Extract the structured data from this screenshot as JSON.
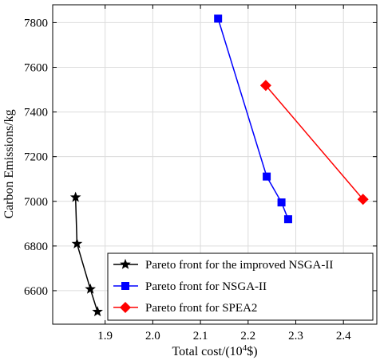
{
  "chart_data": {
    "type": "line",
    "title": "",
    "xlabel": "Total cost/(10",
    "xlabel_sup": "4",
    "xlabel_suffix": "$)",
    "ylabel": "Carbon Emissions/kg",
    "xlim": [
      1.79,
      2.47
    ],
    "ylim": [
      6450,
      7880
    ],
    "xticks": [
      1.9,
      2.0,
      2.1,
      2.2,
      2.3,
      2.4
    ],
    "xtick_labels": [
      "1.9",
      "2.0",
      "2.1",
      "2.2",
      "2.3",
      "2.4"
    ],
    "yticks": [
      6600,
      6800,
      7000,
      7200,
      7400,
      7600,
      7800
    ],
    "ytick_labels": [
      "6600",
      "6800",
      "7000",
      "7200",
      "7400",
      "7600",
      "7800"
    ],
    "grid": true,
    "legend_position": "bottom-right",
    "series": [
      {
        "name": "Pareto front for the improved NSGA-II",
        "color": "#000000",
        "marker": "star",
        "points": [
          {
            "x": 1.838,
            "y": 7018
          },
          {
            "x": 1.841,
            "y": 6810
          },
          {
            "x": 1.869,
            "y": 6607
          },
          {
            "x": 1.884,
            "y": 6506
          }
        ]
      },
      {
        "name": "Pareto front for NSGA-II",
        "color": "#0000ff",
        "marker": "square",
        "points": [
          {
            "x": 2.137,
            "y": 7818
          },
          {
            "x": 2.239,
            "y": 7111
          },
          {
            "x": 2.27,
            "y": 6995
          },
          {
            "x": 2.284,
            "y": 6920
          }
        ]
      },
      {
        "name": "Pareto front for SPEA2",
        "color": "#ff0000",
        "marker": "diamond",
        "points": [
          {
            "x": 2.237,
            "y": 7519
          },
          {
            "x": 2.441,
            "y": 7009
          }
        ]
      }
    ]
  }
}
